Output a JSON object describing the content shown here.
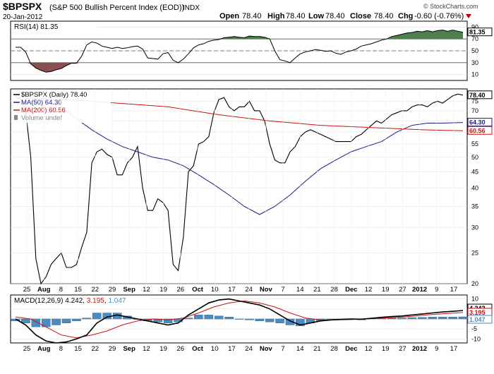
{
  "header": {
    "symbol": "$BPSPX",
    "name": "(S&P 500 Bullish Percent Index (EOD))",
    "exchange": "INDX",
    "date": "20-Jan-2012",
    "open_label": "Open",
    "open": "78.40",
    "high_label": "High",
    "high": "78.40",
    "low_label": "Low",
    "low": "78.40",
    "close_label": "Close",
    "close": "78.40",
    "chg_label": "Chg",
    "chg": "-0.60 (-0.76%)",
    "watermark": "© StockCharts.com"
  },
  "x_labels": [
    {
      "label": "25",
      "bold": false
    },
    {
      "label": "Aug",
      "bold": true
    },
    {
      "label": "8",
      "bold": false
    },
    {
      "label": "15",
      "bold": false
    },
    {
      "label": "22",
      "bold": false
    },
    {
      "label": "29",
      "bold": false
    },
    {
      "label": "Sep",
      "bold": true
    },
    {
      "label": "12",
      "bold": false
    },
    {
      "label": "19",
      "bold": false
    },
    {
      "label": "26",
      "bold": false
    },
    {
      "label": "Oct",
      "bold": true
    },
    {
      "label": "10",
      "bold": false
    },
    {
      "label": "17",
      "bold": false
    },
    {
      "label": "24",
      "bold": false
    },
    {
      "label": "Nov",
      "bold": true
    },
    {
      "label": "7",
      "bold": false
    },
    {
      "label": "14",
      "bold": false
    },
    {
      "label": "21",
      "bold": false
    },
    {
      "label": "28",
      "bold": false
    },
    {
      "label": "Dec",
      "bold": true
    },
    {
      "label": "12",
      "bold": false
    },
    {
      "label": "19",
      "bold": false
    },
    {
      "label": "27",
      "bold": false
    },
    {
      "label": "2012",
      "bold": true
    },
    {
      "label": "9",
      "bold": false
    },
    {
      "label": "17",
      "bold": false
    }
  ],
  "chart_data": [
    {
      "type": "line",
      "panel": "rsi",
      "legend": "RSI(14) 81.35",
      "ylim": [
        0,
        100
      ],
      "y_ticks": [
        "90",
        "70",
        "50",
        "30",
        "10"
      ],
      "y_tick_values": [
        90,
        70,
        50,
        30,
        10
      ],
      "reference_lines": [
        70,
        50,
        30
      ],
      "last_value_label": "81.35",
      "colors": {
        "line": "#000000",
        "overbought": "#4e7f4e",
        "oversold": "#8a5050"
      },
      "x": [
        0,
        2,
        4,
        6,
        8,
        10,
        12,
        14,
        16,
        18,
        20,
        22,
        24,
        26,
        28,
        30,
        32,
        34,
        36,
        38,
        40,
        42,
        44,
        46,
        48,
        50,
        52,
        54,
        56,
        58,
        60,
        62,
        64,
        66,
        68,
        70,
        72,
        74,
        76,
        78,
        80,
        82,
        84,
        86,
        88,
        90,
        92,
        94,
        96,
        98,
        100,
        102,
        104,
        106,
        108,
        110,
        112,
        114,
        116,
        118,
        120,
        122,
        124,
        126,
        128,
        130,
        132,
        134,
        136,
        138,
        140,
        142,
        144,
        146,
        148,
        150,
        152,
        154,
        156,
        158,
        160,
        162,
        164,
        166,
        168,
        170,
        172,
        174,
        176
      ],
      "values": [
        56,
        56,
        48,
        28,
        21,
        17,
        14,
        15,
        18,
        20,
        25,
        29,
        29,
        41,
        60,
        65,
        63,
        58,
        56,
        54,
        56,
        54,
        55,
        57,
        58,
        53,
        38,
        37,
        36,
        45,
        47,
        34,
        30,
        36,
        45,
        55,
        60,
        62,
        66,
        68,
        69,
        72,
        73,
        74,
        73,
        72,
        75,
        74,
        74,
        73,
        70,
        50,
        35,
        33,
        30,
        38,
        45,
        48,
        50,
        52,
        51,
        49,
        50,
        46,
        44,
        48,
        50,
        53,
        58,
        60,
        62,
        65,
        68,
        70,
        74,
        76,
        78,
        80,
        81,
        83,
        82,
        84,
        82,
        84,
        85,
        83,
        85,
        83,
        81.35
      ]
    },
    {
      "type": "line",
      "panel": "price",
      "ylim": [
        20,
        82
      ],
      "y_scale": "log",
      "y_ticks": [
        "75",
        "70",
        "65",
        "60",
        "55",
        "50",
        "45",
        "40",
        "35",
        "30",
        "25",
        "20"
      ],
      "y_tick_values": [
        75,
        70,
        65,
        60,
        55,
        50,
        45,
        40,
        35,
        30,
        25,
        20
      ],
      "legend": [
        {
          "label": "$BPSPX (Daily) 78.40",
          "color": "#000000"
        },
        {
          "label": "MA(50) 64.30",
          "color": "#1a1a8c"
        },
        {
          "label": "MA(200) 60.56",
          "color": "#cc1010"
        },
        {
          "label": "Volume undef",
          "color": "#888888"
        }
      ],
      "last_value_labels": [
        {
          "label": "78.40",
          "value": 78.4,
          "color": "#000000"
        },
        {
          "label": "64.30",
          "value": 64.3,
          "color": "#1a1a8c"
        },
        {
          "label": "60.56",
          "value": 60.56,
          "color": "#cc1010"
        }
      ],
      "series": [
        {
          "name": "$BPSPX (Daily) 78.40",
          "color": "#000000",
          "x": [
            0,
            2,
            4,
            6,
            8,
            10,
            12,
            14,
            16,
            18,
            20,
            22,
            24,
            26,
            28,
            30,
            32,
            34,
            36,
            38,
            40,
            42,
            44,
            46,
            48,
            50,
            52,
            54,
            56,
            58,
            60,
            62,
            64,
            66,
            68,
            70,
            72,
            74,
            76,
            78,
            80,
            82,
            84,
            86,
            88,
            90,
            92,
            94,
            96,
            98,
            100,
            102,
            104,
            106,
            108,
            110,
            112,
            114,
            116,
            118,
            120,
            122,
            124,
            126,
            128,
            130,
            132,
            134,
            136,
            138,
            140,
            142,
            144,
            146,
            148,
            150,
            152,
            154,
            156,
            158,
            160,
            162,
            164,
            166,
            168,
            170,
            172,
            174,
            176
          ],
          "values": [
            78,
            76,
            70,
            50,
            24,
            20,
            21,
            23,
            24,
            25,
            22.5,
            22.5,
            23,
            26,
            29,
            48,
            52,
            53,
            51,
            50,
            44,
            44,
            48,
            50,
            54,
            40,
            34,
            34,
            37,
            36,
            34,
            23,
            22,
            28,
            45,
            47,
            55,
            56,
            58,
            69,
            76,
            77,
            72,
            70,
            72,
            72,
            75,
            70,
            70,
            65,
            55,
            49,
            48,
            48,
            52,
            54,
            58,
            60,
            61,
            60,
            59,
            58,
            57,
            56,
            56,
            56,
            56,
            58,
            59,
            61,
            63,
            65,
            64,
            66,
            68,
            69,
            70,
            70,
            72,
            73,
            73,
            72,
            74,
            75,
            74,
            76,
            78,
            79,
            78.4
          ]
        },
        {
          "name": "MA(50) 64.30",
          "color": "#1a1a8c",
          "x": [
            18,
            24,
            30,
            36,
            42,
            48,
            54,
            60,
            66,
            72,
            78,
            84,
            90,
            96,
            102,
            108,
            114,
            120,
            126,
            132,
            138,
            144,
            150,
            156,
            162,
            168,
            176
          ],
          "values": [
            72,
            66,
            61,
            57,
            54,
            52,
            50,
            49,
            47,
            44,
            41,
            38,
            35,
            33,
            35,
            38,
            42,
            46,
            49,
            52,
            54,
            56,
            60,
            63,
            64,
            64,
            64.3
          ]
        },
        {
          "name": "MA(200) 60.56",
          "color": "#cc1010",
          "x": [
            0,
            20,
            40,
            60,
            80,
            100,
            120,
            140,
            160,
            176
          ],
          "values": [
            77,
            76,
            74,
            72,
            68,
            65,
            63,
            62,
            61,
            60.56
          ]
        }
      ]
    },
    {
      "type": "line",
      "panel": "macd",
      "legend": "MACD(12,26,9) 4.242, 3.195, 1.047",
      "legend_parts": [
        "MACD(12,26,9)",
        "4.242",
        "3.195",
        "1.047"
      ],
      "ylim": [
        -12,
        12
      ],
      "y_ticks": [
        "10",
        "5",
        "0",
        "-5",
        "-10"
      ],
      "y_tick_values": [
        10,
        5,
        0,
        -5,
        -10
      ],
      "last_value_labels": [
        {
          "label": "4.242",
          "value": 4.242,
          "color": "#000000"
        },
        {
          "label": "3.195",
          "value": 3.195,
          "color": "#cc1010"
        },
        {
          "label": "1.047",
          "value": 1.047,
          "color": "#4a8bc2"
        }
      ],
      "series": [
        {
          "name": "MACD(12,26,9)",
          "color": "#000000",
          "x": [
            0,
            4,
            8,
            12,
            16,
            20,
            24,
            28,
            32,
            36,
            40,
            44,
            48,
            52,
            56,
            60,
            64,
            68,
            72,
            76,
            80,
            84,
            88,
            92,
            96,
            100,
            104,
            108,
            112,
            116,
            120,
            124,
            128,
            132,
            136,
            140,
            144,
            148,
            152,
            156,
            160,
            164,
            168,
            172,
            176
          ],
          "values": [
            0,
            -3,
            -8,
            -11,
            -12,
            -11.5,
            -10,
            -8,
            -2,
            1,
            2,
            1,
            0,
            -1,
            -2,
            -3,
            -2,
            2,
            5,
            8,
            9.5,
            10,
            9,
            8,
            7,
            5,
            2,
            -1,
            -3,
            -2,
            -1,
            -0.5,
            -0.2,
            0,
            -0.1,
            0.3,
            0.8,
            1.2,
            1.5,
            2,
            2.5,
            3,
            3.5,
            3.8,
            4.242
          ]
        },
        {
          "name": "Signal",
          "color": "#cc1010",
          "x": [
            0,
            6,
            12,
            18,
            24,
            30,
            36,
            42,
            48,
            54,
            60,
            66,
            72,
            78,
            84,
            90,
            96,
            102,
            108,
            114,
            120,
            126,
            132,
            138,
            144,
            150,
            156,
            162,
            168,
            176
          ],
          "values": [
            1,
            0,
            -4,
            -8,
            -9.5,
            -8,
            -6,
            -3,
            -1,
            0,
            -0.5,
            0.5,
            3,
            6,
            8,
            9,
            8,
            6,
            3,
            0.5,
            -0.5,
            -0.5,
            -0.3,
            0,
            0.4,
            0.8,
            1.3,
            2,
            2.6,
            3.195
          ]
        },
        {
          "name": "Histogram",
          "color": "#4a8bc2",
          "x": [
            0,
            4,
            8,
            12,
            16,
            20,
            24,
            28,
            32,
            36,
            40,
            44,
            48,
            52,
            56,
            60,
            64,
            68,
            72,
            76,
            80,
            84,
            88,
            92,
            96,
            100,
            104,
            108,
            112,
            116,
            120,
            124,
            128,
            132,
            136,
            140,
            144,
            148,
            152,
            156,
            160,
            164,
            168,
            172,
            176
          ],
          "values": [
            -1,
            -2,
            -4,
            -4,
            -3,
            -2,
            -1,
            0.5,
            3,
            3,
            3,
            1.5,
            0,
            -1,
            -1.5,
            -2,
            -1.5,
            0.5,
            2,
            2,
            1.5,
            1,
            0,
            -0.5,
            -1,
            -1.5,
            -2,
            -3,
            -3.5,
            -2,
            -1,
            -0.5,
            0,
            0,
            -0.5,
            0.3,
            0.4,
            0.5,
            0.5,
            0.6,
            0.8,
            1,
            1,
            1,
            1.047
          ]
        }
      ]
    }
  ]
}
